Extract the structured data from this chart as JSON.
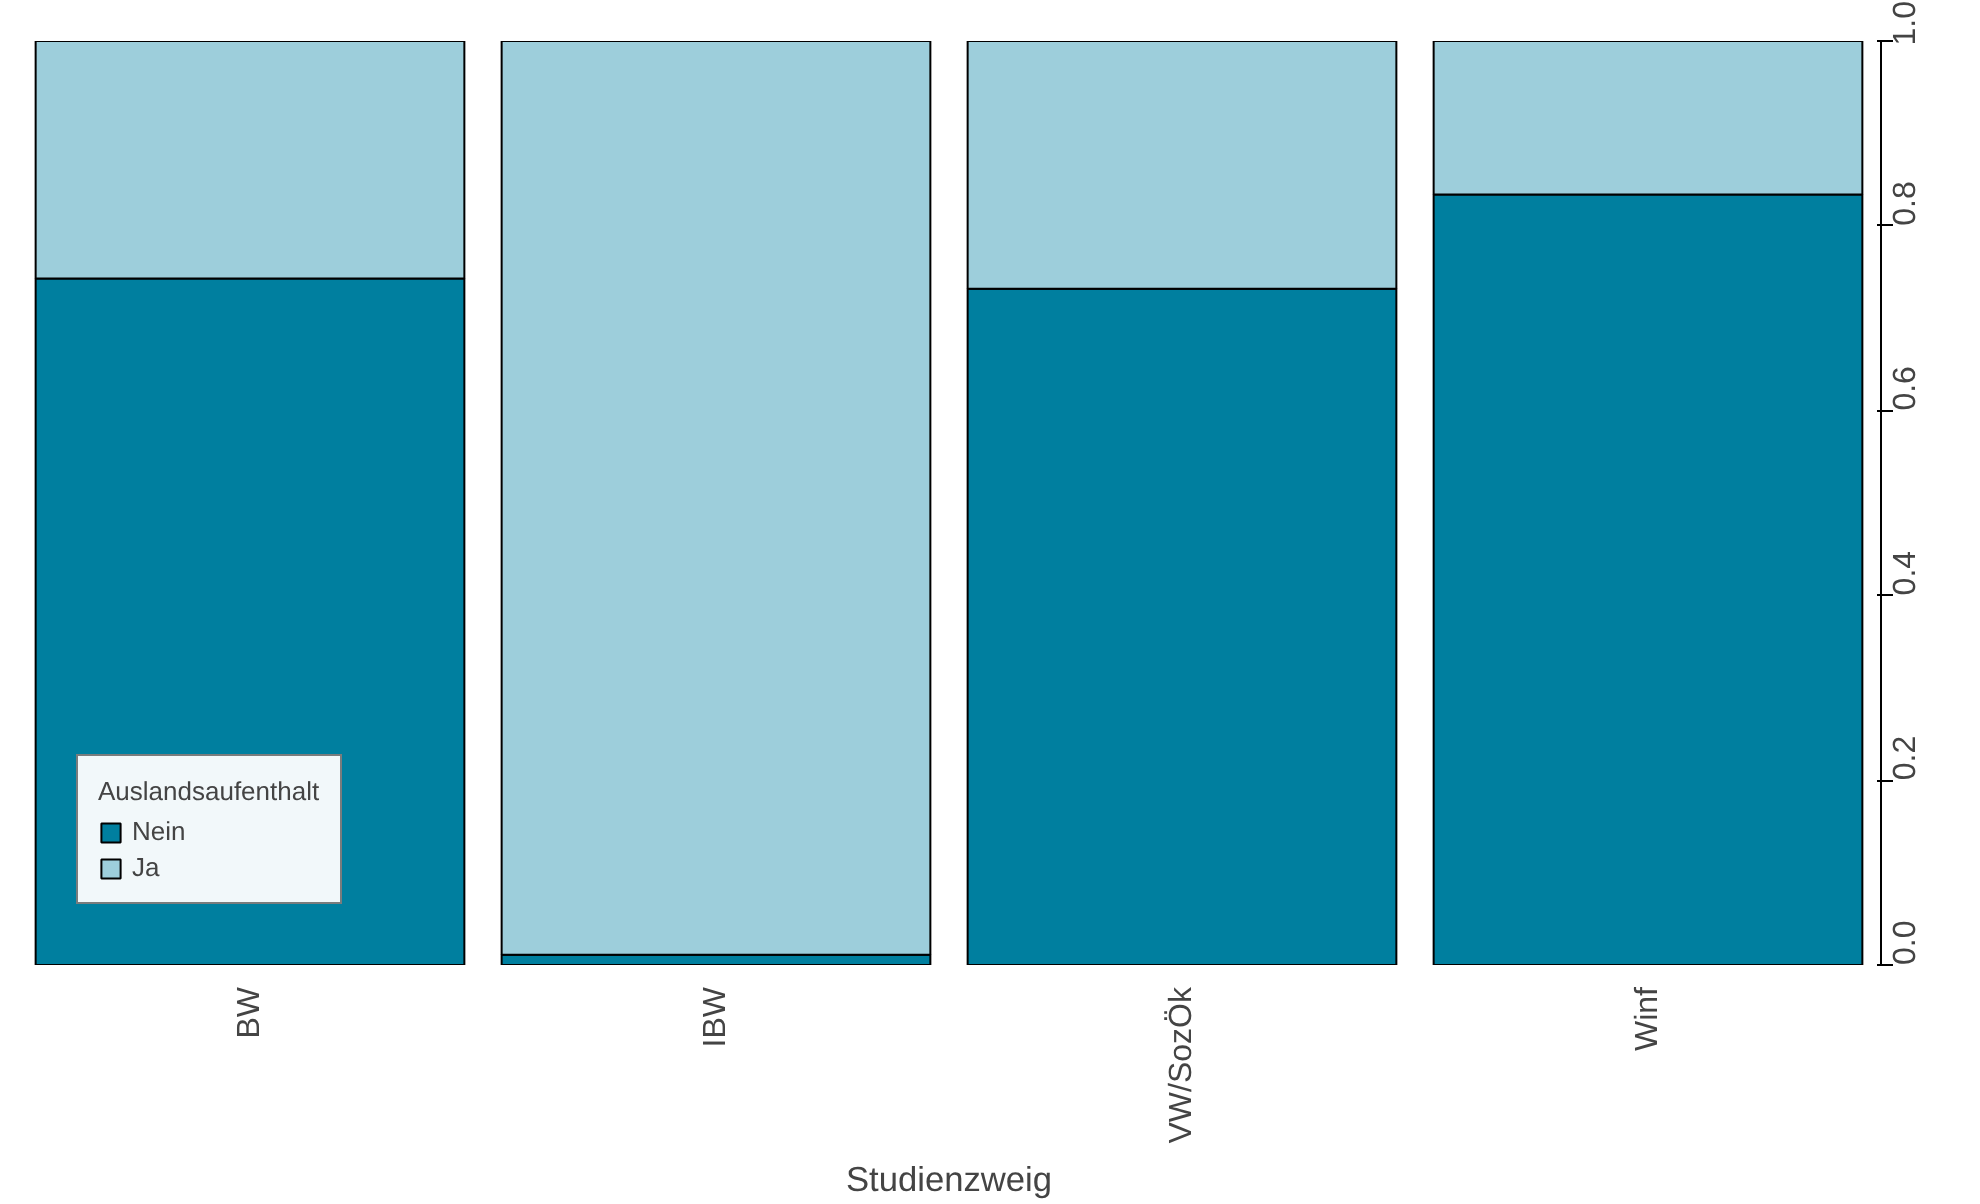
{
  "chart_data": {
    "type": "bar",
    "stacked": true,
    "xlabel": "Studienzweig",
    "legend_title": "Auslandsaufenthalt",
    "legend": "bottom left",
    "grid": false,
    "categories": [
      "BW",
      "IBW",
      "VW/SozÖk",
      "Winf"
    ],
    "ylim": [
      0,
      1
    ],
    "yticks": [
      {
        "value": 0,
        "label": "0.0"
      },
      {
        "value": 0.2,
        "label": "0.2"
      },
      {
        "value": 0.4,
        "label": "0.4"
      },
      {
        "value": 0.6,
        "label": "0.6"
      },
      {
        "value": 0.8,
        "label": "0.8"
      },
      {
        "value": 1,
        "label": "1.0"
      }
    ],
    "series": [
      {
        "name": "Nein",
        "color": "#007f9f",
        "values": [
          0.743,
          0.011,
          0.732,
          0.834
        ]
      },
      {
        "name": "Ja",
        "color": "#9dcedb",
        "values": [
          0.257,
          0.989,
          0.268,
          0.166
        ]
      }
    ]
  }
}
